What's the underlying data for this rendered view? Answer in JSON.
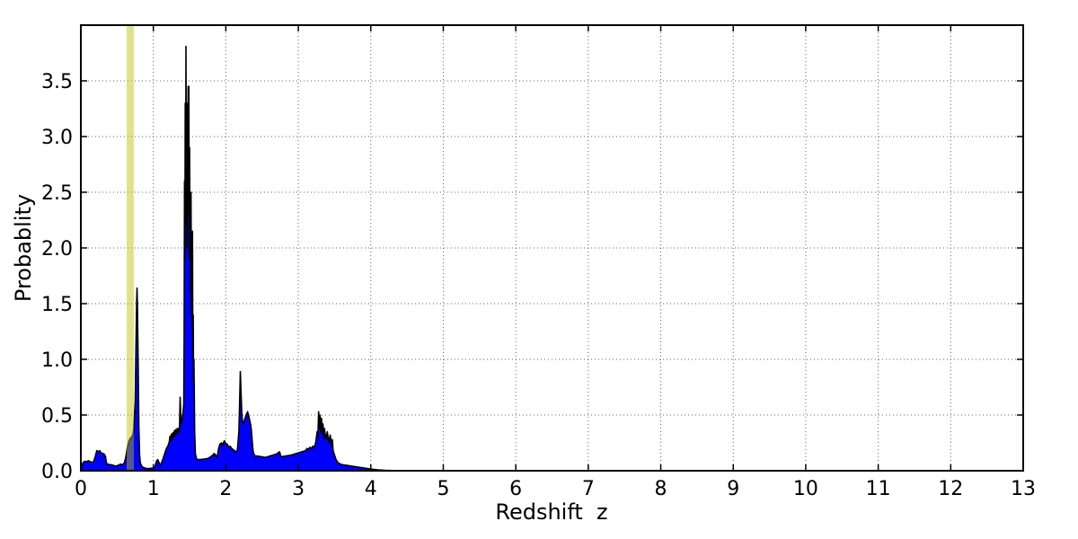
{
  "figure": {
    "background": "#ffffff"
  },
  "chart_data": {
    "type": "area",
    "title": "",
    "xlabel": "Redshift  z",
    "ylabel": "Probablity",
    "xlim": [
      0,
      13
    ],
    "ylim": [
      0,
      4.0
    ],
    "grid": true,
    "grid_style": "dotted",
    "legend": "none",
    "xticks": [
      0,
      1,
      2,
      3,
      4,
      5,
      6,
      7,
      8,
      9,
      10,
      11,
      12,
      13
    ],
    "xtick_labels": [
      "0",
      "1",
      "2",
      "3",
      "4",
      "5",
      "6",
      "7",
      "8",
      "9",
      "10",
      "11",
      "12",
      "13"
    ],
    "yticks": [
      0,
      0.5,
      1.0,
      1.5,
      2.0,
      2.5,
      3.0,
      3.5
    ],
    "ytick_labels": [
      "0.0",
      "0.5",
      "1.0",
      "1.5",
      "2.0",
      "2.5",
      "3.0",
      "3.5"
    ],
    "annotations": [
      {
        "type": "vspan",
        "name": "highlight-band",
        "x0": 0.632,
        "x1": 0.731,
        "color": "#bfbf00",
        "opacity": 0.45
      }
    ],
    "series": [
      {
        "name": "probability-density",
        "style": "filled-line",
        "fill_color": "#0000ff",
        "line_color": "#000000",
        "line_width": 1.6,
        "points": [
          [
            0.0,
            0.0
          ],
          [
            0.01,
            0.03
          ],
          [
            0.02,
            0.06
          ],
          [
            0.04,
            0.08
          ],
          [
            0.06,
            0.085
          ],
          [
            0.08,
            0.08
          ],
          [
            0.1,
            0.09
          ],
          [
            0.12,
            0.085
          ],
          [
            0.14,
            0.08
          ],
          [
            0.16,
            0.07
          ],
          [
            0.18,
            0.09
          ],
          [
            0.2,
            0.13
          ],
          [
            0.22,
            0.18
          ],
          [
            0.24,
            0.17
          ],
          [
            0.26,
            0.18
          ],
          [
            0.28,
            0.16
          ],
          [
            0.3,
            0.155
          ],
          [
            0.32,
            0.15
          ],
          [
            0.34,
            0.13
          ],
          [
            0.35,
            0.08
          ],
          [
            0.36,
            0.06
          ],
          [
            0.4,
            0.055
          ],
          [
            0.44,
            0.05
          ],
          [
            0.48,
            0.04
          ],
          [
            0.5,
            0.045
          ],
          [
            0.52,
            0.05
          ],
          [
            0.55,
            0.06
          ],
          [
            0.57,
            0.05
          ],
          [
            0.6,
            0.07
          ],
          [
            0.62,
            0.12
          ],
          [
            0.64,
            0.2
          ],
          [
            0.66,
            0.26
          ],
          [
            0.68,
            0.29
          ],
          [
            0.7,
            0.3
          ],
          [
            0.72,
            0.33
          ],
          [
            0.73,
            0.38
          ],
          [
            0.74,
            0.5
          ],
          [
            0.75,
            0.62
          ],
          [
            0.76,
            1.1
          ],
          [
            0.77,
            1.52
          ],
          [
            0.775,
            1.64
          ],
          [
            0.78,
            1.5
          ],
          [
            0.79,
            1.0
          ],
          [
            0.8,
            0.4
          ],
          [
            0.81,
            0.15
          ],
          [
            0.82,
            0.07
          ],
          [
            0.84,
            0.04
          ],
          [
            0.86,
            0.03
          ],
          [
            0.9,
            0.02
          ],
          [
            0.95,
            0.02
          ],
          [
            1.0,
            0.025
          ],
          [
            1.02,
            0.03
          ],
          [
            1.04,
            0.08
          ],
          [
            1.06,
            0.1
          ],
          [
            1.08,
            0.07
          ],
          [
            1.1,
            0.05
          ],
          [
            1.13,
            0.1
          ],
          [
            1.16,
            0.16
          ],
          [
            1.18,
            0.2
          ],
          [
            1.2,
            0.22
          ],
          [
            1.22,
            0.26
          ],
          [
            1.23,
            0.31
          ],
          [
            1.24,
            0.27
          ],
          [
            1.25,
            0.33
          ],
          [
            1.26,
            0.28
          ],
          [
            1.27,
            0.34
          ],
          [
            1.28,
            0.3
          ],
          [
            1.29,
            0.36
          ],
          [
            1.3,
            0.31
          ],
          [
            1.31,
            0.37
          ],
          [
            1.32,
            0.33
          ],
          [
            1.33,
            0.38
          ],
          [
            1.34,
            0.34
          ],
          [
            1.35,
            0.38
          ],
          [
            1.36,
            0.35
          ],
          [
            1.37,
            0.66
          ],
          [
            1.38,
            0.45
          ],
          [
            1.39,
            0.42
          ],
          [
            1.4,
            0.48
          ],
          [
            1.41,
            0.52
          ],
          [
            1.42,
            0.6
          ],
          [
            1.425,
            1.2
          ],
          [
            1.43,
            2.6
          ],
          [
            1.435,
            1.9
          ],
          [
            1.44,
            3.3
          ],
          [
            1.445,
            2.2
          ],
          [
            1.45,
            3.81
          ],
          [
            1.455,
            2.6
          ],
          [
            1.46,
            3.3
          ],
          [
            1.465,
            2.0
          ],
          [
            1.47,
            3.1
          ],
          [
            1.475,
            2.3
          ],
          [
            1.48,
            3.45
          ],
          [
            1.485,
            2.7
          ],
          [
            1.49,
            3.45
          ],
          [
            1.495,
            1.9
          ],
          [
            1.5,
            2.9
          ],
          [
            1.505,
            2.1
          ],
          [
            1.51,
            2.5
          ],
          [
            1.515,
            1.6
          ],
          [
            1.52,
            2.5
          ],
          [
            1.525,
            1.4
          ],
          [
            1.53,
            2.15
          ],
          [
            1.535,
            1.3
          ],
          [
            1.54,
            2.15
          ],
          [
            1.545,
            1.0
          ],
          [
            1.55,
            1.4
          ],
          [
            1.555,
            0.8
          ],
          [
            1.56,
            1.0
          ],
          [
            1.57,
            0.35
          ],
          [
            1.58,
            0.15
          ],
          [
            1.6,
            0.1
          ],
          [
            1.65,
            0.1
          ],
          [
            1.7,
            0.105
          ],
          [
            1.75,
            0.11
          ],
          [
            1.78,
            0.12
          ],
          [
            1.8,
            0.13
          ],
          [
            1.82,
            0.14
          ],
          [
            1.84,
            0.155
          ],
          [
            1.86,
            0.14
          ],
          [
            1.88,
            0.12
          ],
          [
            1.9,
            0.2
          ],
          [
            1.92,
            0.24
          ],
          [
            1.94,
            0.25
          ],
          [
            1.95,
            0.22
          ],
          [
            1.96,
            0.24
          ],
          [
            1.98,
            0.27
          ],
          [
            2.0,
            0.24
          ],
          [
            2.02,
            0.24
          ],
          [
            2.04,
            0.21
          ],
          [
            2.06,
            0.22
          ],
          [
            2.08,
            0.2
          ],
          [
            2.1,
            0.19
          ],
          [
            2.12,
            0.18
          ],
          [
            2.14,
            0.165
          ],
          [
            2.16,
            0.19
          ],
          [
            2.18,
            0.35
          ],
          [
            2.19,
            0.6
          ],
          [
            2.2,
            0.89
          ],
          [
            2.21,
            0.7
          ],
          [
            2.22,
            0.52
          ],
          [
            2.23,
            0.44
          ],
          [
            2.24,
            0.42
          ],
          [
            2.26,
            0.46
          ],
          [
            2.28,
            0.5
          ],
          [
            2.3,
            0.53
          ],
          [
            2.32,
            0.48
          ],
          [
            2.34,
            0.42
          ],
          [
            2.35,
            0.38
          ],
          [
            2.36,
            0.3
          ],
          [
            2.37,
            0.22
          ],
          [
            2.38,
            0.16
          ],
          [
            2.4,
            0.135
          ],
          [
            2.45,
            0.13
          ],
          [
            2.5,
            0.125
          ],
          [
            2.55,
            0.12
          ],
          [
            2.6,
            0.13
          ],
          [
            2.65,
            0.14
          ],
          [
            2.7,
            0.15
          ],
          [
            2.72,
            0.16
          ],
          [
            2.74,
            0.17
          ],
          [
            2.76,
            0.13
          ],
          [
            2.78,
            0.125
          ],
          [
            2.8,
            0.13
          ],
          [
            2.85,
            0.135
          ],
          [
            2.9,
            0.14
          ],
          [
            2.95,
            0.15
          ],
          [
            3.0,
            0.16
          ],
          [
            3.05,
            0.17
          ],
          [
            3.1,
            0.18
          ],
          [
            3.12,
            0.2
          ],
          [
            3.14,
            0.19
          ],
          [
            3.16,
            0.21
          ],
          [
            3.18,
            0.2
          ],
          [
            3.2,
            0.22
          ],
          [
            3.22,
            0.21
          ],
          [
            3.24,
            0.25
          ],
          [
            3.26,
            0.35
          ],
          [
            3.27,
            0.3
          ],
          [
            3.28,
            0.53
          ],
          [
            3.29,
            0.38
          ],
          [
            3.3,
            0.5
          ],
          [
            3.31,
            0.35
          ],
          [
            3.32,
            0.47
          ],
          [
            3.33,
            0.33
          ],
          [
            3.34,
            0.42
          ],
          [
            3.35,
            0.3
          ],
          [
            3.36,
            0.38
          ],
          [
            3.38,
            0.28
          ],
          [
            3.4,
            0.35
          ],
          [
            3.42,
            0.25
          ],
          [
            3.44,
            0.32
          ],
          [
            3.46,
            0.22
          ],
          [
            3.47,
            0.28
          ],
          [
            3.48,
            0.18
          ],
          [
            3.5,
            0.14
          ],
          [
            3.52,
            0.1
          ],
          [
            3.55,
            0.07
          ],
          [
            3.6,
            0.055
          ],
          [
            3.65,
            0.05
          ],
          [
            3.7,
            0.045
          ],
          [
            3.8,
            0.035
          ],
          [
            3.9,
            0.025
          ],
          [
            4.0,
            0.015
          ],
          [
            4.1,
            0.008
          ],
          [
            4.2,
            0.004
          ],
          [
            4.3,
            0.002
          ],
          [
            4.4,
            0.001
          ],
          [
            4.5,
            0.0
          ],
          [
            13.0,
            0.0
          ]
        ]
      }
    ]
  }
}
